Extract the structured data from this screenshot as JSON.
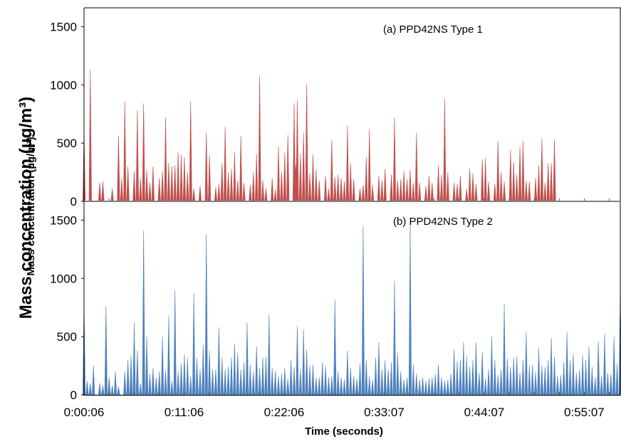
{
  "chart_data": [
    {
      "type": "area",
      "title": "(a) PPD42NS Type 1",
      "color": "#c0504d",
      "ylim": [
        0,
        1600
      ],
      "yticks": [
        "0",
        "500",
        "1000",
        "1500"
      ],
      "peaks": [
        [
          0.0,
          600
        ],
        [
          0.02,
          1130
        ],
        [
          0.05,
          160
        ],
        [
          0.06,
          170
        ],
        [
          0.09,
          110
        ],
        [
          0.11,
          560
        ],
        [
          0.12,
          200
        ],
        [
          0.13,
          860
        ],
        [
          0.14,
          300
        ],
        [
          0.16,
          260
        ],
        [
          0.17,
          780
        ],
        [
          0.18,
          200
        ],
        [
          0.19,
          840
        ],
        [
          0.2,
          270
        ],
        [
          0.21,
          160
        ],
        [
          0.22,
          300
        ],
        [
          0.24,
          200
        ],
        [
          0.25,
          260
        ],
        [
          0.26,
          720
        ],
        [
          0.27,
          330
        ],
        [
          0.28,
          300
        ],
        [
          0.29,
          310
        ],
        [
          0.3,
          420
        ],
        [
          0.31,
          400
        ],
        [
          0.32,
          380
        ],
        [
          0.33,
          250
        ],
        [
          0.34,
          860
        ],
        [
          0.35,
          110
        ],
        [
          0.37,
          130
        ],
        [
          0.39,
          590
        ],
        [
          0.4,
          400
        ],
        [
          0.42,
          120
        ],
        [
          0.43,
          150
        ],
        [
          0.44,
          330
        ],
        [
          0.45,
          640
        ],
        [
          0.46,
          250
        ],
        [
          0.47,
          280
        ],
        [
          0.48,
          420
        ],
        [
          0.49,
          180
        ],
        [
          0.5,
          560
        ],
        [
          0.51,
          160
        ],
        [
          0.53,
          140
        ],
        [
          0.54,
          250
        ],
        [
          0.55,
          410
        ],
        [
          0.56,
          1080
        ],
        [
          0.57,
          180
        ],
        [
          0.58,
          110
        ],
        [
          0.6,
          200
        ],
        [
          0.61,
          100
        ],
        [
          0.62,
          470
        ],
        [
          0.63,
          250
        ],
        [
          0.64,
          420
        ],
        [
          0.65,
          570
        ],
        [
          0.67,
          840
        ],
        [
          0.675,
          320
        ],
        [
          0.68,
          870
        ],
        [
          0.69,
          410
        ],
        [
          0.7,
          590
        ],
        [
          0.71,
          1010
        ],
        [
          0.72,
          240
        ],
        [
          0.73,
          400
        ],
        [
          0.74,
          270
        ],
        [
          0.75,
          180
        ],
        [
          0.77,
          220
        ],
        [
          0.78,
          110
        ],
        [
          0.79,
          530
        ],
        [
          0.8,
          210
        ],
        [
          0.81,
          230
        ],
        [
          0.82,
          200
        ],
        [
          0.83,
          170
        ],
        [
          0.84,
          650
        ],
        [
          0.85,
          330
        ],
        [
          0.86,
          190
        ],
        [
          0.88,
          110
        ],
        [
          0.89,
          140
        ],
        [
          0.9,
          380
        ],
        [
          0.91,
          620
        ],
        [
          0.92,
          140
        ],
        [
          0.94,
          220
        ],
        [
          0.95,
          180
        ],
        [
          0.96,
          280
        ],
        [
          0.98,
          230
        ],
        [
          0.99,
          720
        ],
        [
          1.0,
          180
        ],
        [
          1.01,
          190
        ],
        [
          1.02,
          260
        ],
        [
          1.03,
          190
        ],
        [
          1.04,
          270
        ],
        [
          1.05,
          160
        ],
        [
          1.06,
          590
        ],
        [
          1.07,
          160
        ],
        [
          1.09,
          130
        ],
        [
          1.1,
          220
        ],
        [
          1.11,
          160
        ],
        [
          1.13,
          310
        ],
        [
          1.14,
          230
        ],
        [
          1.15,
          880
        ],
        [
          1.16,
          250
        ],
        [
          1.18,
          160
        ],
        [
          1.19,
          150
        ],
        [
          1.2,
          220
        ],
        [
          1.22,
          110
        ],
        [
          1.23,
          280
        ],
        [
          1.24,
          240
        ],
        [
          1.25,
          150
        ],
        [
          1.27,
          360
        ],
        [
          1.28,
          370
        ],
        [
          1.29,
          170
        ],
        [
          1.31,
          150
        ],
        [
          1.32,
          520
        ],
        [
          1.33,
          250
        ],
        [
          1.34,
          170
        ],
        [
          1.36,
          440
        ],
        [
          1.37,
          340
        ],
        [
          1.38,
          230
        ],
        [
          1.39,
          470
        ],
        [
          1.4,
          520
        ],
        [
          1.41,
          180
        ],
        [
          1.42,
          170
        ],
        [
          1.44,
          200
        ],
        [
          1.45,
          310
        ],
        [
          1.46,
          540
        ],
        [
          1.47,
          160
        ],
        [
          1.48,
          330
        ],
        [
          1.49,
          330
        ],
        [
          1.5,
          530
        ]
      ]
    },
    {
      "type": "area",
      "title": "(b) PPD42NS Type 2",
      "color": "#4f81bd",
      "ylim": [
        0,
        1600
      ],
      "yticks": [
        "0",
        "500",
        "1000",
        "1500"
      ],
      "xticks": [
        "0:00:06",
        "0:11:06",
        "0:22:06",
        "0:33:07",
        "0:44:07",
        "0:55:07"
      ],
      "xlabel": "Time (seconds)",
      "peaks": [
        [
          0.0,
          780
        ],
        [
          0.01,
          120
        ],
        [
          0.02,
          100
        ],
        [
          0.03,
          250
        ],
        [
          0.05,
          100
        ],
        [
          0.06,
          80
        ],
        [
          0.07,
          760
        ],
        [
          0.08,
          150
        ],
        [
          0.09,
          80
        ],
        [
          0.1,
          200
        ],
        [
          0.11,
          70
        ],
        [
          0.13,
          200
        ],
        [
          0.14,
          300
        ],
        [
          0.15,
          340
        ],
        [
          0.16,
          620
        ],
        [
          0.17,
          380
        ],
        [
          0.18,
          100
        ],
        [
          0.19,
          1410
        ],
        [
          0.2,
          500
        ],
        [
          0.21,
          180
        ],
        [
          0.22,
          230
        ],
        [
          0.23,
          150
        ],
        [
          0.24,
          200
        ],
        [
          0.25,
          500
        ],
        [
          0.26,
          210
        ],
        [
          0.27,
          680
        ],
        [
          0.28,
          120
        ],
        [
          0.29,
          900
        ],
        [
          0.3,
          200
        ],
        [
          0.31,
          270
        ],
        [
          0.32,
          350
        ],
        [
          0.33,
          320
        ],
        [
          0.34,
          160
        ],
        [
          0.35,
          870
        ],
        [
          0.36,
          320
        ],
        [
          0.37,
          220
        ],
        [
          0.38,
          430
        ],
        [
          0.39,
          1380
        ],
        [
          0.4,
          380
        ],
        [
          0.41,
          220
        ],
        [
          0.42,
          220
        ],
        [
          0.43,
          580
        ],
        [
          0.44,
          320
        ],
        [
          0.45,
          220
        ],
        [
          0.46,
          240
        ],
        [
          0.47,
          320
        ],
        [
          0.48,
          440
        ],
        [
          0.49,
          360
        ],
        [
          0.5,
          220
        ],
        [
          0.51,
          280
        ],
        [
          0.52,
          620
        ],
        [
          0.53,
          260
        ],
        [
          0.54,
          200
        ],
        [
          0.55,
          420
        ],
        [
          0.56,
          230
        ],
        [
          0.57,
          320
        ],
        [
          0.58,
          330
        ],
        [
          0.59,
          690
        ],
        [
          0.6,
          230
        ],
        [
          0.61,
          210
        ],
        [
          0.62,
          160
        ],
        [
          0.63,
          180
        ],
        [
          0.64,
          230
        ],
        [
          0.65,
          140
        ],
        [
          0.66,
          300
        ],
        [
          0.67,
          240
        ],
        [
          0.68,
          590
        ],
        [
          0.69,
          220
        ],
        [
          0.7,
          560
        ],
        [
          0.71,
          390
        ],
        [
          0.72,
          250
        ],
        [
          0.73,
          260
        ],
        [
          0.74,
          150
        ],
        [
          0.75,
          150
        ],
        [
          0.76,
          280
        ],
        [
          0.77,
          250
        ],
        [
          0.78,
          150
        ],
        [
          0.79,
          160
        ],
        [
          0.8,
          820
        ],
        [
          0.81,
          200
        ],
        [
          0.82,
          150
        ],
        [
          0.83,
          130
        ],
        [
          0.84,
          380
        ],
        [
          0.85,
          230
        ],
        [
          0.86,
          160
        ],
        [
          0.87,
          140
        ],
        [
          0.88,
          270
        ],
        [
          0.89,
          1450
        ],
        [
          0.9,
          300
        ],
        [
          0.91,
          160
        ],
        [
          0.92,
          130
        ],
        [
          0.93,
          320
        ],
        [
          0.94,
          450
        ],
        [
          0.95,
          220
        ],
        [
          0.96,
          300
        ],
        [
          0.97,
          220
        ],
        [
          0.98,
          280
        ],
        [
          0.99,
          980
        ],
        [
          1.0,
          360
        ],
        [
          1.01,
          200
        ],
        [
          1.02,
          130
        ],
        [
          1.03,
          150
        ],
        [
          1.04,
          1470
        ],
        [
          1.05,
          260
        ],
        [
          1.06,
          180
        ],
        [
          1.07,
          130
        ],
        [
          1.08,
          150
        ],
        [
          1.09,
          120
        ],
        [
          1.1,
          140
        ],
        [
          1.11,
          150
        ],
        [
          1.12,
          180
        ],
        [
          1.13,
          260
        ],
        [
          1.14,
          150
        ],
        [
          1.15,
          120
        ],
        [
          1.16,
          130
        ],
        [
          1.17,
          180
        ],
        [
          1.18,
          390
        ],
        [
          1.19,
          290
        ],
        [
          1.2,
          300
        ],
        [
          1.21,
          450
        ],
        [
          1.22,
          330
        ],
        [
          1.23,
          240
        ],
        [
          1.24,
          300
        ],
        [
          1.25,
          450
        ],
        [
          1.26,
          190
        ],
        [
          1.27,
          370
        ],
        [
          1.28,
          140
        ],
        [
          1.29,
          220
        ],
        [
          1.3,
          500
        ],
        [
          1.31,
          300
        ],
        [
          1.32,
          170
        ],
        [
          1.33,
          220
        ],
        [
          1.34,
          780
        ],
        [
          1.35,
          310
        ],
        [
          1.36,
          240
        ],
        [
          1.37,
          320
        ],
        [
          1.38,
          330
        ],
        [
          1.39,
          190
        ],
        [
          1.4,
          300
        ],
        [
          1.41,
          540
        ],
        [
          1.42,
          250
        ],
        [
          1.43,
          260
        ],
        [
          1.44,
          200
        ],
        [
          1.45,
          400
        ],
        [
          1.46,
          250
        ],
        [
          1.47,
          240
        ],
        [
          1.48,
          300
        ],
        [
          1.49,
          490
        ],
        [
          1.5,
          330
        ],
        [
          1.51,
          160
        ],
        [
          1.52,
          170
        ],
        [
          1.53,
          280
        ],
        [
          1.54,
          540
        ],
        [
          1.55,
          300
        ],
        [
          1.56,
          350
        ],
        [
          1.57,
          190
        ],
        [
          1.58,
          220
        ],
        [
          1.59,
          340
        ],
        [
          1.6,
          300
        ],
        [
          1.61,
          420
        ],
        [
          1.62,
          240
        ],
        [
          1.63,
          150
        ],
        [
          1.64,
          460
        ],
        [
          1.65,
          160
        ],
        [
          1.66,
          520
        ],
        [
          1.67,
          190
        ],
        [
          1.68,
          180
        ],
        [
          1.69,
          500
        ],
        [
          1.7,
          270
        ],
        [
          1.71,
          920
        ]
      ]
    }
  ],
  "ylabel_big": "Mass concentration (µg/m³)",
  "ylabel_small": "Mass concentration (µg/m³)"
}
